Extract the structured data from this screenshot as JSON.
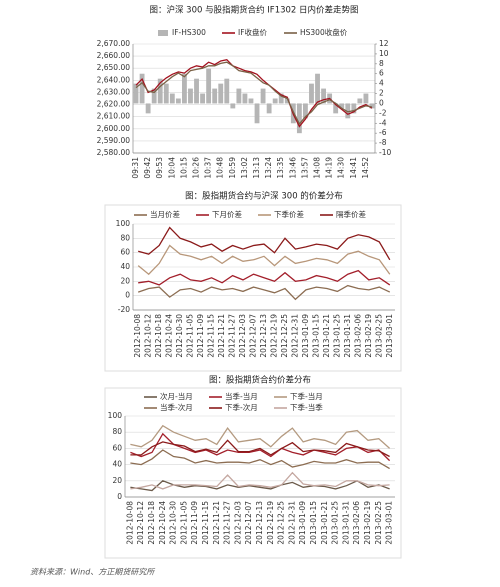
{
  "chart_data": [
    {
      "type": "line",
      "title": "图：沪深 300 与股指期货合约 IF1302 日内价差走势图",
      "legend": "top",
      "grid": true,
      "categories": [
        "09:31",
        null,
        "09:42",
        null,
        "09:53",
        null,
        "10:04",
        null,
        "10:15",
        null,
        "10:26",
        null,
        "10:37",
        null,
        "10:48",
        null,
        "10:59",
        null,
        "13:02",
        null,
        "13:13",
        null,
        "13:24",
        null,
        "13:35",
        null,
        "13:46",
        null,
        "13:57",
        null,
        "14:08",
        null,
        "14:19",
        null,
        "14:30",
        null,
        "14:41",
        null,
        "14:52",
        null
      ],
      "series": [
        {
          "name": "IF-HS300",
          "type": "bar",
          "axis": "y2",
          "color": "#b5b5b5",
          "values": [
            4,
            6,
            -2,
            3,
            5,
            4,
            2,
            1,
            6,
            3,
            5,
            2,
            7,
            3,
            4,
            5,
            -1,
            3,
            2,
            1,
            -4,
            3,
            -2,
            1,
            2,
            1,
            -4,
            -6,
            -3,
            4,
            6,
            3,
            2,
            -2,
            -1,
            -3,
            -2,
            1,
            2,
            -1
          ]
        },
        {
          "name": "IF收盘价",
          "color": "#a3121f",
          "values": [
            2636,
            2641,
            2630,
            2632,
            2638,
            2642,
            2645,
            2647,
            2646,
            2650,
            2652,
            2651,
            2655,
            2653,
            2656,
            2657,
            2652,
            2650,
            2648,
            2647,
            2645,
            2640,
            2636,
            2632,
            2628,
            2626,
            2612,
            2602,
            2608,
            2616,
            2622,
            2624,
            2625,
            2620,
            2616,
            2612,
            2614,
            2618,
            2620,
            2617
          ]
        },
        {
          "name": "HS300收盘价",
          "color": "#7a6146",
          "values": [
            2634,
            2638,
            2631,
            2630,
            2635,
            2639,
            2643,
            2646,
            2643,
            2648,
            2649,
            2650,
            2652,
            2652,
            2654,
            2655,
            2652,
            2648,
            2647,
            2646,
            2642,
            2638,
            2636,
            2631,
            2627,
            2625,
            2614,
            2604,
            2610,
            2614,
            2620,
            2622,
            2624,
            2621,
            2617,
            2614,
            2615,
            2617,
            2619,
            2618
          ]
        }
      ],
      "ylim": [
        2580,
        2670
      ],
      "yticks": [
        {
          "value": 2580,
          "label": "2,580.00"
        },
        {
          "value": 2590,
          "label": "2,590.00"
        },
        {
          "value": 2600,
          "label": "2,600.00"
        },
        {
          "value": 2610,
          "label": "2,610.00"
        },
        {
          "value": 2620,
          "label": "2,620.00"
        },
        {
          "value": 2630,
          "label": "2,630.00"
        },
        {
          "value": 2640,
          "label": "2,640.00"
        },
        {
          "value": 2650,
          "label": "2,650.00"
        },
        {
          "value": 2660,
          "label": "2,660.00"
        },
        {
          "value": 2670,
          "label": "2,670.00"
        }
      ],
      "y2lim": [
        -10,
        12
      ],
      "y2ticks": [
        -10,
        -8,
        -6,
        -4,
        -2,
        0,
        2,
        4,
        6,
        8,
        10,
        12
      ]
    },
    {
      "type": "line",
      "title": "图：股指期货合约与沪深 300 的价差分布",
      "legend": "top",
      "grid": true,
      "categories": [
        "2012-10-08",
        "2012-10-12",
        "2012-10-18",
        "2012-10-24",
        "2012-10-30",
        "2012-11-05",
        "2012-11-09",
        "2012-11-15",
        "2012-11-21",
        "2012-11-27",
        "2012-12-03",
        "2012-12-07",
        "2012-12-13",
        "2012-12-19",
        "2012-12-25",
        "2012-12-31",
        "2013-01-09",
        "2013-01-15",
        "2013-01-21",
        "2013-01-25",
        "2013-01-31",
        "2013-02-06",
        "2013-02-19",
        "2013-02-25",
        "2013-03-01"
      ],
      "series": [
        {
          "name": "当月价差",
          "color": "#8c6d52",
          "values": [
            5,
            10,
            12,
            -2,
            8,
            10,
            5,
            12,
            8,
            10,
            6,
            12,
            8,
            4,
            10,
            -5,
            8,
            12,
            10,
            6,
            14,
            10,
            8,
            12,
            5
          ]
        },
        {
          "name": "下月价差",
          "color": "#a31f2b",
          "values": [
            18,
            20,
            15,
            25,
            30,
            22,
            20,
            25,
            18,
            28,
            22,
            30,
            25,
            20,
            32,
            20,
            22,
            28,
            25,
            20,
            30,
            35,
            22,
            25,
            15
          ]
        },
        {
          "name": "下季价差",
          "color": "#b8977a",
          "values": [
            42,
            30,
            45,
            70,
            58,
            55,
            50,
            55,
            45,
            55,
            48,
            50,
            55,
            42,
            55,
            45,
            48,
            52,
            50,
            45,
            58,
            62,
            55,
            50,
            30
          ]
        },
        {
          "name": "隔季价差",
          "color": "#8b1a1a",
          "values": [
            62,
            58,
            70,
            95,
            80,
            75,
            68,
            72,
            62,
            70,
            65,
            70,
            72,
            60,
            80,
            65,
            68,
            72,
            70,
            65,
            80,
            85,
            82,
            75,
            50
          ]
        }
      ],
      "ylim": [
        -20,
        100
      ],
      "yticks": [
        -20,
        0,
        20,
        40,
        60,
        80,
        100
      ]
    },
    {
      "type": "line",
      "title": "图：股指期货合约价差分布",
      "legend": "top",
      "grid": true,
      "categories": [
        "2012-10-08",
        "2012-10-12",
        "2012-10-18",
        "2012-10-24",
        "2012-10-30",
        "2012-11-05",
        "2012-11-09",
        "2012-11-15",
        "2012-11-21",
        "2012-11-27",
        "2012-12-03",
        "2012-12-07",
        "2012-12-13",
        "2012-12-19",
        "2012-12-25",
        "2012-12-31",
        "2013-01-09",
        "2013-01-15",
        "2013-01-21",
        "2013-01-25",
        "2013-01-31",
        "2013-02-06",
        "2013-02-19",
        "2013-02-25",
        "2013-03-01"
      ],
      "series": [
        {
          "name": "次月-当月",
          "color": "#6b5a4a",
          "values": [
            12,
            10,
            8,
            20,
            15,
            12,
            14,
            13,
            10,
            15,
            12,
            14,
            12,
            10,
            15,
            18,
            12,
            14,
            13,
            10,
            14,
            20,
            12,
            15,
            10
          ]
        },
        {
          "name": "当季-当月",
          "color": "#a31f2b",
          "values": [
            55,
            50,
            55,
            78,
            65,
            60,
            55,
            58,
            52,
            58,
            55,
            55,
            58,
            50,
            60,
            55,
            52,
            58,
            55,
            52,
            60,
            62,
            55,
            58,
            45
          ]
        },
        {
          "name": "下季-当月",
          "color": "#b49a80",
          "values": [
            65,
            62,
            70,
            88,
            80,
            75,
            70,
            72,
            65,
            85,
            68,
            70,
            72,
            62,
            75,
            85,
            68,
            72,
            70,
            65,
            80,
            82,
            70,
            72,
            60
          ]
        },
        {
          "name": "当季-次月",
          "color": "#8c6d52",
          "values": [
            42,
            40,
            47,
            58,
            50,
            48,
            42,
            45,
            42,
            43,
            43,
            42,
            46,
            40,
            45,
            37,
            40,
            44,
            42,
            42,
            46,
            42,
            43,
            43,
            35
          ]
        },
        {
          "name": "下季-次月",
          "color": "#8b1a1a",
          "values": [
            52,
            52,
            62,
            68,
            65,
            63,
            56,
            59,
            55,
            70,
            56,
            56,
            60,
            52,
            60,
            67,
            56,
            58,
            57,
            55,
            66,
            62,
            58,
            57,
            50
          ]
        },
        {
          "name": "下季-当季",
          "color": "#c4a7a0",
          "values": [
            10,
            12,
            15,
            10,
            15,
            15,
            15,
            14,
            13,
            27,
            13,
            15,
            14,
            12,
            15,
            30,
            16,
            14,
            15,
            13,
            20,
            20,
            15,
            14,
            15
          ]
        }
      ],
      "ylim": [
        0,
        100
      ],
      "yticks": [
        0,
        20,
        40,
        60,
        80,
        100
      ]
    }
  ],
  "source": "资料来源：Wind、方正期货研究所"
}
